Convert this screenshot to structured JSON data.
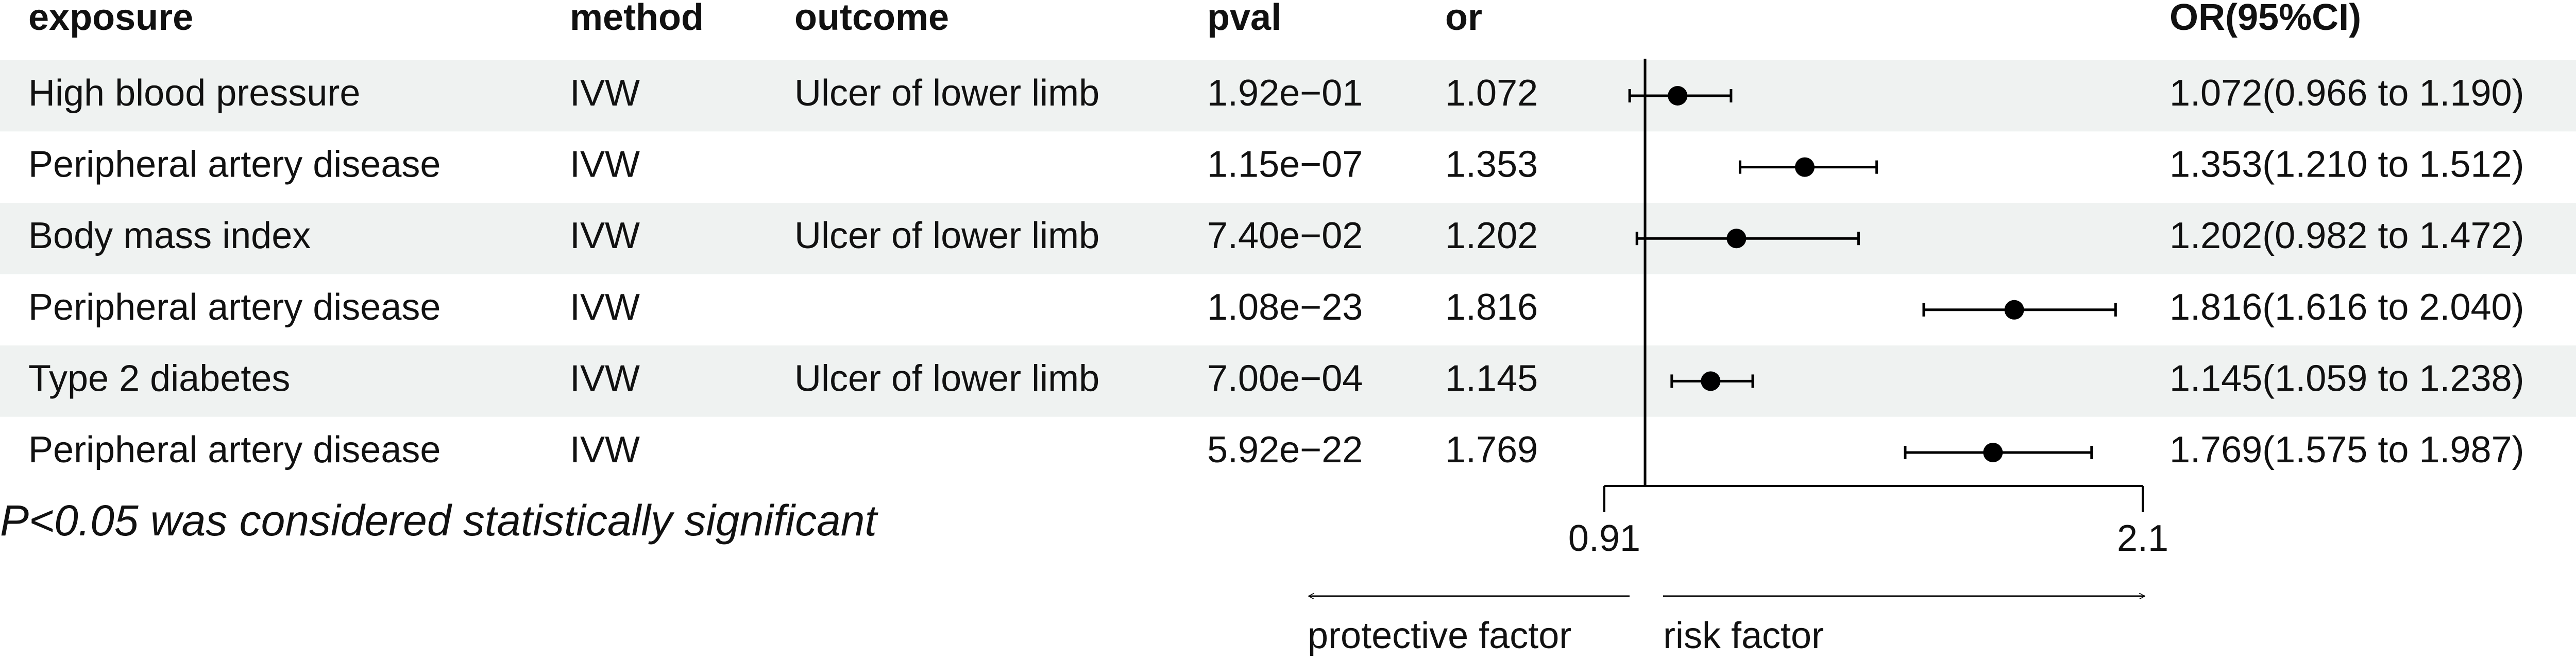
{
  "chart_data": {
    "type": "forest",
    "columns": [
      "exposure",
      "method",
      "outcome",
      "pval",
      "or",
      "OR(95%CI)"
    ],
    "exposure": [
      "High blood pressure",
      "Peripheral artery disease",
      "Body mass index",
      "Peripheral artery disease",
      "Type 2 diabetes",
      "Peripheral artery disease"
    ],
    "method": [
      "IVW",
      "IVW",
      "IVW",
      "IVW",
      "IVW",
      "IVW"
    ],
    "outcome": [
      "Ulcer of lower limb",
      null,
      "Ulcer of lower limb",
      null,
      "Ulcer of lower limb",
      null
    ],
    "pval": [
      "1.92e−01",
      "1.15e−07",
      "7.40e−02",
      "1.08e−23",
      "7.00e−04",
      "5.92e−22"
    ],
    "values": [
      1.072,
      1.353,
      1.202,
      1.816,
      1.145,
      1.769
    ],
    "lower": [
      0.966,
      1.21,
      0.982,
      1.616,
      1.059,
      1.575
    ],
    "upper": [
      1.19,
      1.512,
      1.472,
      2.04,
      1.238,
      1.987
    ],
    "ci_labels": [
      "1.072(0.966 to 1.190)",
      "1.353(1.210 to 1.512)",
      "1.202(0.982 to 1.472)",
      "1.816(1.616 to 2.040)",
      "1.145(1.059 to 1.238)",
      "1.769(1.575 to 1.987)"
    ],
    "xlim": [
      0.91,
      2.1
    ],
    "xticks": [
      0.91,
      2.1
    ],
    "ref_line": 1,
    "note": "P<0.05 was considered statistically significant",
    "arrow_labels": {
      "left": "protective factor",
      "right": "risk factor"
    },
    "color": "#000000",
    "band_color": "#eff2f1"
  }
}
